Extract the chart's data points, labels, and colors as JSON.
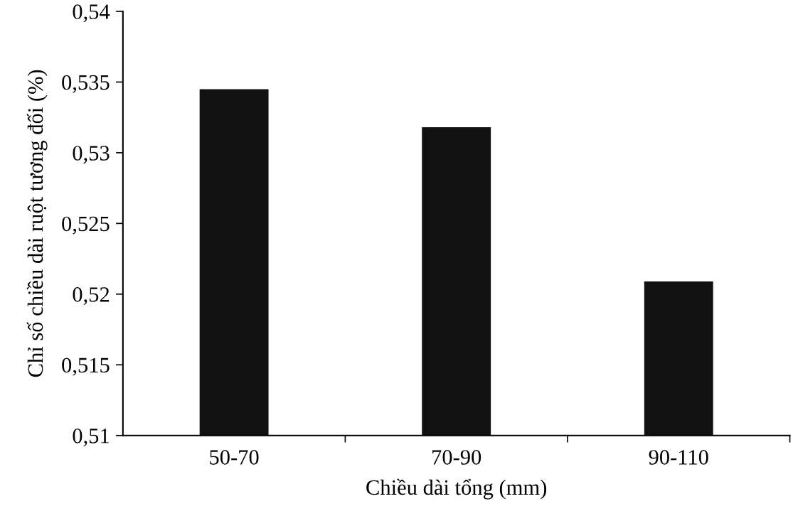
{
  "chart_data": {
    "type": "bar",
    "xlabel": "Chiều dài tổng (mm)",
    "ylabel": "Chỉ số chiều dài ruột tương đối (%)",
    "categories": [
      "50-70",
      "70-90",
      "90-110"
    ],
    "values": [
      0.5345,
      0.5318,
      0.5209
    ],
    "color": "#111111",
    "ylim": [
      0.51,
      0.54
    ],
    "yticks": [
      {
        "value": 0.51,
        "label": "0,51"
      },
      {
        "value": 0.515,
        "label": "0,515"
      },
      {
        "value": 0.52,
        "label": "0,52"
      },
      {
        "value": 0.525,
        "label": "0,525"
      },
      {
        "value": 0.53,
        "label": "0,53"
      },
      {
        "value": 0.535,
        "label": "0,535"
      },
      {
        "value": 0.54,
        "label": "0,54"
      }
    ],
    "grid": false,
    "legend": false
  }
}
